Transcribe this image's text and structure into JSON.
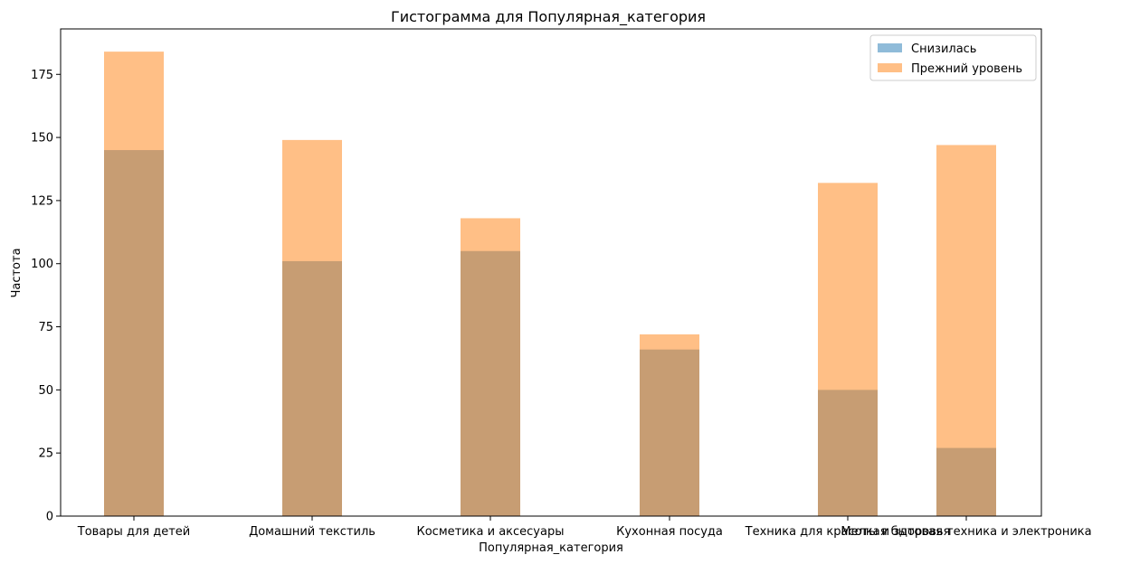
{
  "chart_data": {
    "type": "bar",
    "title": "Гистограмма для Популярная_категория",
    "xlabel": "Популярная_категория",
    "ylabel": "Частота",
    "categories": [
      "Товары для детей",
      "Домашний текстиль",
      "Косметика и аксесуары",
      "Кухонная посуда",
      "Техника для красоты и здоровья",
      "Мелкая бытовая техника и электроника"
    ],
    "series": [
      {
        "name": "Снизилась",
        "color": "#1f77b4",
        "opacity": 0.5,
        "values": [
          145,
          101,
          105,
          66,
          50,
          27
        ]
      },
      {
        "name": "Прежний уровень",
        "color": "#ff7f0e",
        "opacity": 0.5,
        "values": [
          184,
          149,
          118,
          72,
          132,
          147
        ]
      }
    ],
    "ylim": [
      0,
      193
    ],
    "yticks": [
      0,
      25,
      50,
      75,
      100,
      125,
      150,
      175
    ],
    "grid": false,
    "legend_position": "upper right"
  }
}
